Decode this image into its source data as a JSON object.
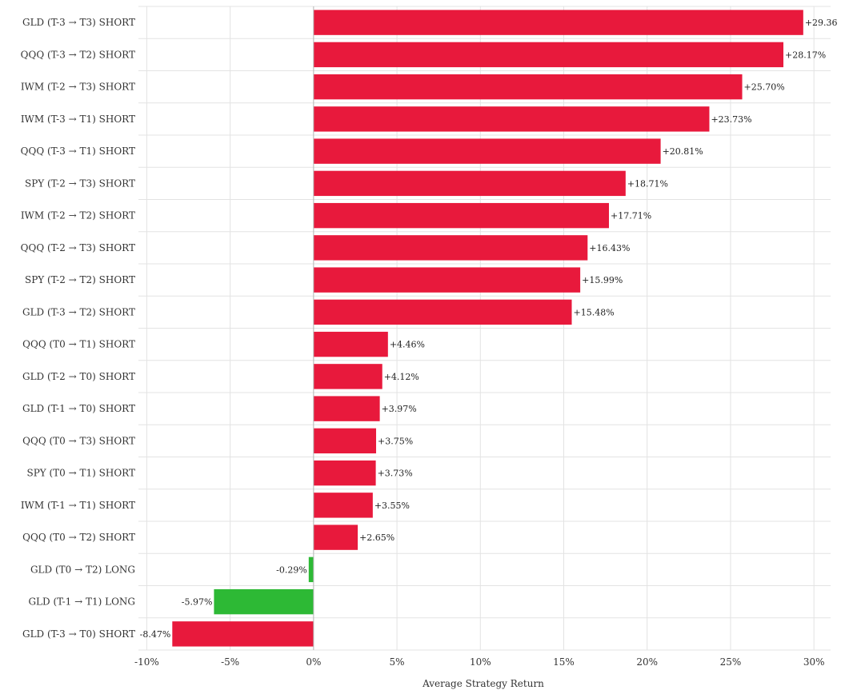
{
  "chart_data": {
    "type": "bar",
    "orientation": "horizontal",
    "categories": [
      "GLD (T-3 → T3) SHORT",
      "QQQ (T-3 → T2) SHORT",
      "IWM (T-2 → T3) SHORT",
      "IWM (T-3 → T1) SHORT",
      "QQQ (T-3 → T1) SHORT",
      "SPY (T-2 → T3) SHORT",
      "IWM (T-2 → T2) SHORT",
      "QQQ (T-2 → T3) SHORT",
      "SPY (T-2 → T2) SHORT",
      "GLD (T-3 → T2) SHORT",
      "QQQ (T0 → T1) SHORT",
      "GLD (T-2 → T0) SHORT",
      "GLD (T-1 → T0) SHORT",
      "QQQ (T0 → T3) SHORT",
      "SPY (T0 → T1) SHORT",
      "IWM (T-1 → T1) SHORT",
      "QQQ (T0 → T2) SHORT",
      "GLD (T0 → T2) LONG",
      "GLD (T-1 → T1) LONG",
      "GLD (T-3 → T0) SHORT"
    ],
    "values": [
      29.36,
      28.17,
      25.7,
      23.73,
      20.81,
      18.71,
      17.71,
      16.43,
      15.99,
      15.48,
      4.46,
      4.12,
      3.97,
      3.75,
      3.73,
      3.55,
      2.65,
      -0.29,
      -5.97,
      -8.47
    ],
    "value_labels": [
      "+29.36",
      "+28.17%",
      "+25.70%",
      "+23.73%",
      "+20.81%",
      "+18.71%",
      "+17.71%",
      "+16.43%",
      "+15.99%",
      "+15.48%",
      "+4.46%",
      "+4.12%",
      "+3.97%",
      "+3.75%",
      "+3.73%",
      "+3.55%",
      "+2.65%",
      "-0.29%",
      "-5.97%",
      "-8.47%"
    ],
    "bar_colors": [
      "#e8193c",
      "#e8193c",
      "#e8193c",
      "#e8193c",
      "#e8193c",
      "#e8193c",
      "#e8193c",
      "#e8193c",
      "#e8193c",
      "#e8193c",
      "#e8193c",
      "#e8193c",
      "#e8193c",
      "#e8193c",
      "#e8193c",
      "#e8193c",
      "#e8193c",
      "#2db935",
      "#2db935",
      "#e8193c"
    ],
    "xlim": [
      -10.5,
      31
    ],
    "xticks": [
      -10,
      -5,
      0,
      5,
      10,
      15,
      20,
      25,
      30
    ],
    "xtick_labels": [
      "-10%",
      "-5%",
      "0%",
      "5%",
      "10%",
      "15%",
      "20%",
      "25%",
      "30%"
    ],
    "xlabel": "Average Strategy Return",
    "ylabel": "",
    "title": "",
    "grid": true,
    "legend": "none"
  }
}
